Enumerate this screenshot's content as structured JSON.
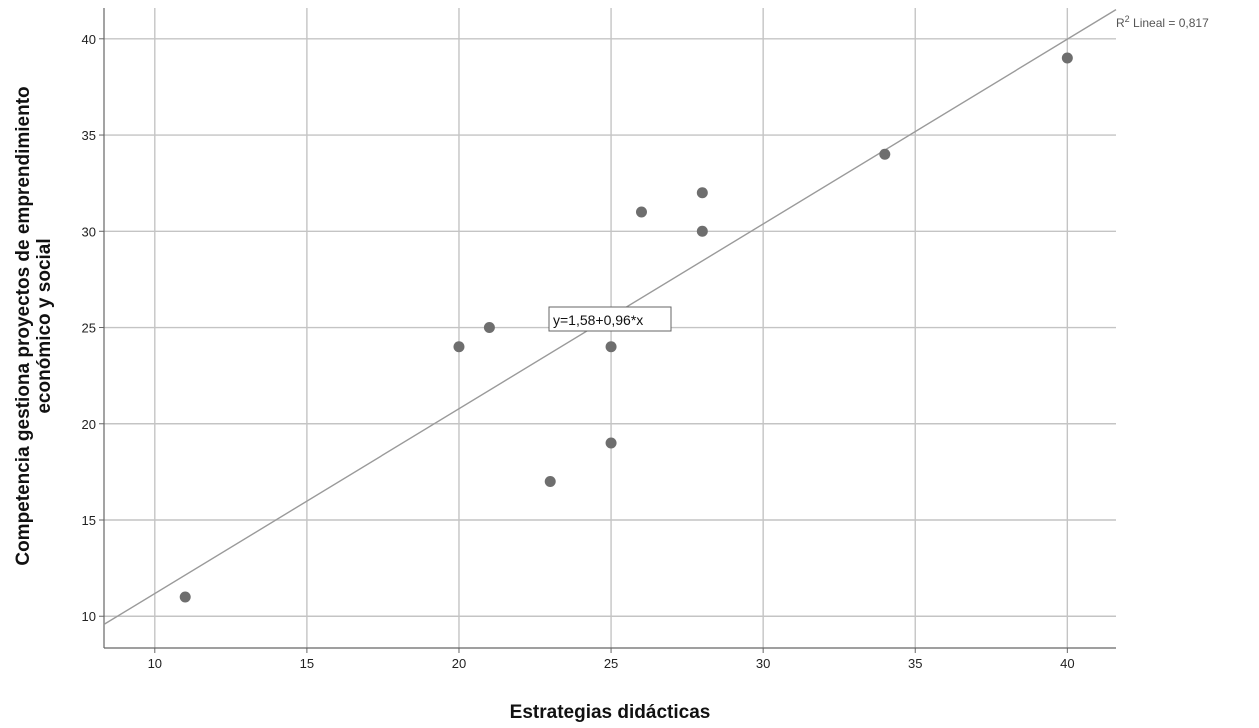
{
  "chart_data": {
    "type": "scatter",
    "xlabel": "Estrategias didácticas",
    "ylabel_lines": [
      "Competencia gestiona proyectos de emprendimiento",
      "económico y social"
    ],
    "xlim": [
      8.33,
      41.6
    ],
    "ylim": [
      8.35,
      41.6
    ],
    "x_ticks": [
      10,
      15,
      20,
      25,
      30,
      35,
      40
    ],
    "y_ticks": [
      10,
      15,
      20,
      25,
      30,
      35,
      40
    ],
    "x_tick_labels": [
      "10",
      "15",
      "20",
      "25",
      "30",
      "35",
      "40"
    ],
    "y_tick_labels": [
      "10",
      "15",
      "20",
      "25",
      "30",
      "35",
      "40"
    ],
    "grid": true,
    "points": [
      {
        "x": 11,
        "y": 11
      },
      {
        "x": 20,
        "y": 24
      },
      {
        "x": 21,
        "y": 25
      },
      {
        "x": 23,
        "y": 17
      },
      {
        "x": 25,
        "y": 24
      },
      {
        "x": 25,
        "y": 19
      },
      {
        "x": 26,
        "y": 31
      },
      {
        "x": 28,
        "y": 32
      },
      {
        "x": 28,
        "y": 30
      },
      {
        "x": 34,
        "y": 34
      },
      {
        "x": 40,
        "y": 39
      }
    ],
    "fit_line": {
      "intercept": 1.58,
      "slope": 0.96
    },
    "equation_label": "y=1,58+0,96*x",
    "r2_label": "R",
    "r2_sup": "2",
    "r2_value_label": " Lineal = 0,817",
    "colors": {
      "point": "#6e6e6e",
      "line": "#9a9a9a",
      "grid": "#c4c4c4",
      "axis": "#666666"
    }
  }
}
